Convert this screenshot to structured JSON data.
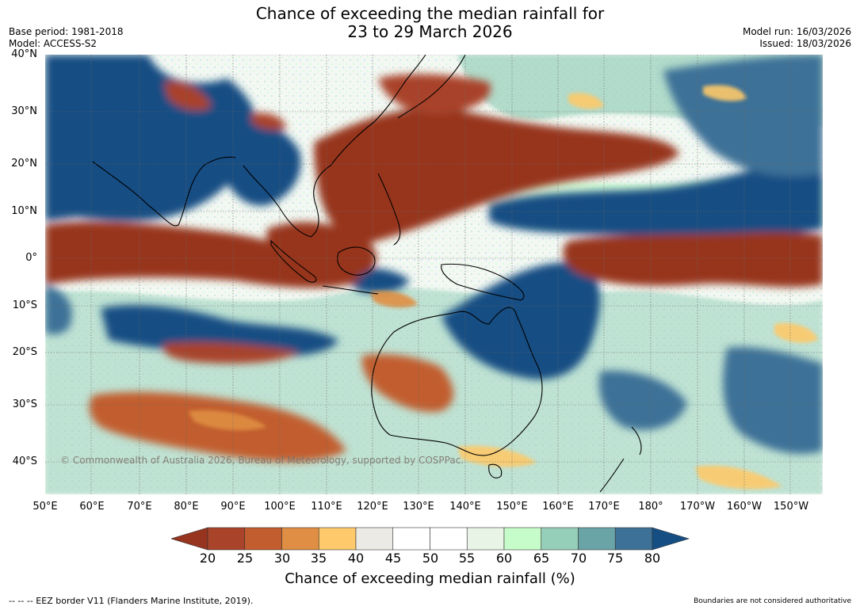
{
  "title": {
    "line1": "Chance of exceeding the median rainfall for",
    "line2": "23 to 29 March 2026"
  },
  "meta_left": {
    "base_period": "Base period: 1981-2018",
    "model": "Model: ACCESS-S2"
  },
  "meta_right": {
    "model_run": "Model run: 16/03/2026",
    "issued": "Issued: 18/03/2026"
  },
  "lat_labels": [
    "40°N",
    "30°N",
    "20°N",
    "10°N",
    "0°",
    "10°S",
    "20°S",
    "30°S",
    "40°S"
  ],
  "lon_labels": [
    "50°E",
    "60°E",
    "70°E",
    "80°E",
    "90°E",
    "100°E",
    "110°E",
    "120°E",
    "130°E",
    "140°E",
    "150°E",
    "160°E",
    "170°E",
    "180°",
    "170°W",
    "160°W",
    "150°W"
  ],
  "copyright": "© Commonwealth of Australia 2026, Bureau of Meteorology, supported by COSPPac.",
  "colorbar": {
    "ticks": [
      "20",
      "25",
      "30",
      "35",
      "40",
      "45",
      "50",
      "55",
      "60",
      "65",
      "70",
      "75",
      "80"
    ],
    "colors": [
      "#a9432a",
      "#c15d2e",
      "#df8e43",
      "#fdc96b",
      "#eceae4",
      "#ffffff",
      "#ffffff",
      "#e8f5e6",
      "#c6fcca",
      "#96cfb9",
      "#6aa4a6",
      "#3e7197"
    ],
    "low_color": "#97341f",
    "high_color": "#154e83",
    "label": "Chance of exceeding median rainfall (%)"
  },
  "footer": {
    "left": "--  --  -- EEZ border V11 (Flanders Marine Institute, 2019).",
    "right": "Boundaries are not considered authoritative"
  }
}
